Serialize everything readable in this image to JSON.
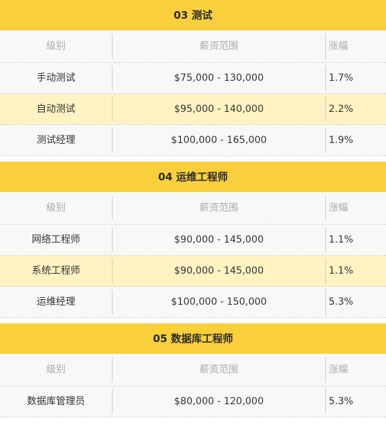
{
  "headers": {
    "level": "级别",
    "salary": "薪资范围",
    "growth": "涨幅"
  },
  "sections": [
    {
      "title": "03 测试",
      "rows": [
        {
          "level": "手动测试",
          "salary": "$75,000 - 130,000",
          "growth": "1.7%"
        },
        {
          "level": "自动测试",
          "salary": "$95,000 - 140,000",
          "growth": "2.2%"
        },
        {
          "level": "测试经理",
          "salary": "$100,000 - 165,000",
          "growth": "1.9%"
        }
      ]
    },
    {
      "title": "04 运维工程师",
      "rows": [
        {
          "level": "网络工程师",
          "salary": "$90,000 - 145,000",
          "growth": "1.1%"
        },
        {
          "level": "系统工程师",
          "salary": "$90,000 - 145,000",
          "growth": "1.1%"
        },
        {
          "level": "运维经理",
          "salary": "$100,000 - 150,000",
          "growth": "5.3%"
        }
      ]
    },
    {
      "title": "05 数据库工程师",
      "rows": [
        {
          "level": "数据库管理员",
          "salary": "$80,000 - 120,000",
          "growth": "5.3%"
        }
      ]
    }
  ],
  "colors": {
    "title_bar": "#f9cf3b",
    "highlight_row": "#fff2c3",
    "row_bg": "#f8f8f8"
  }
}
